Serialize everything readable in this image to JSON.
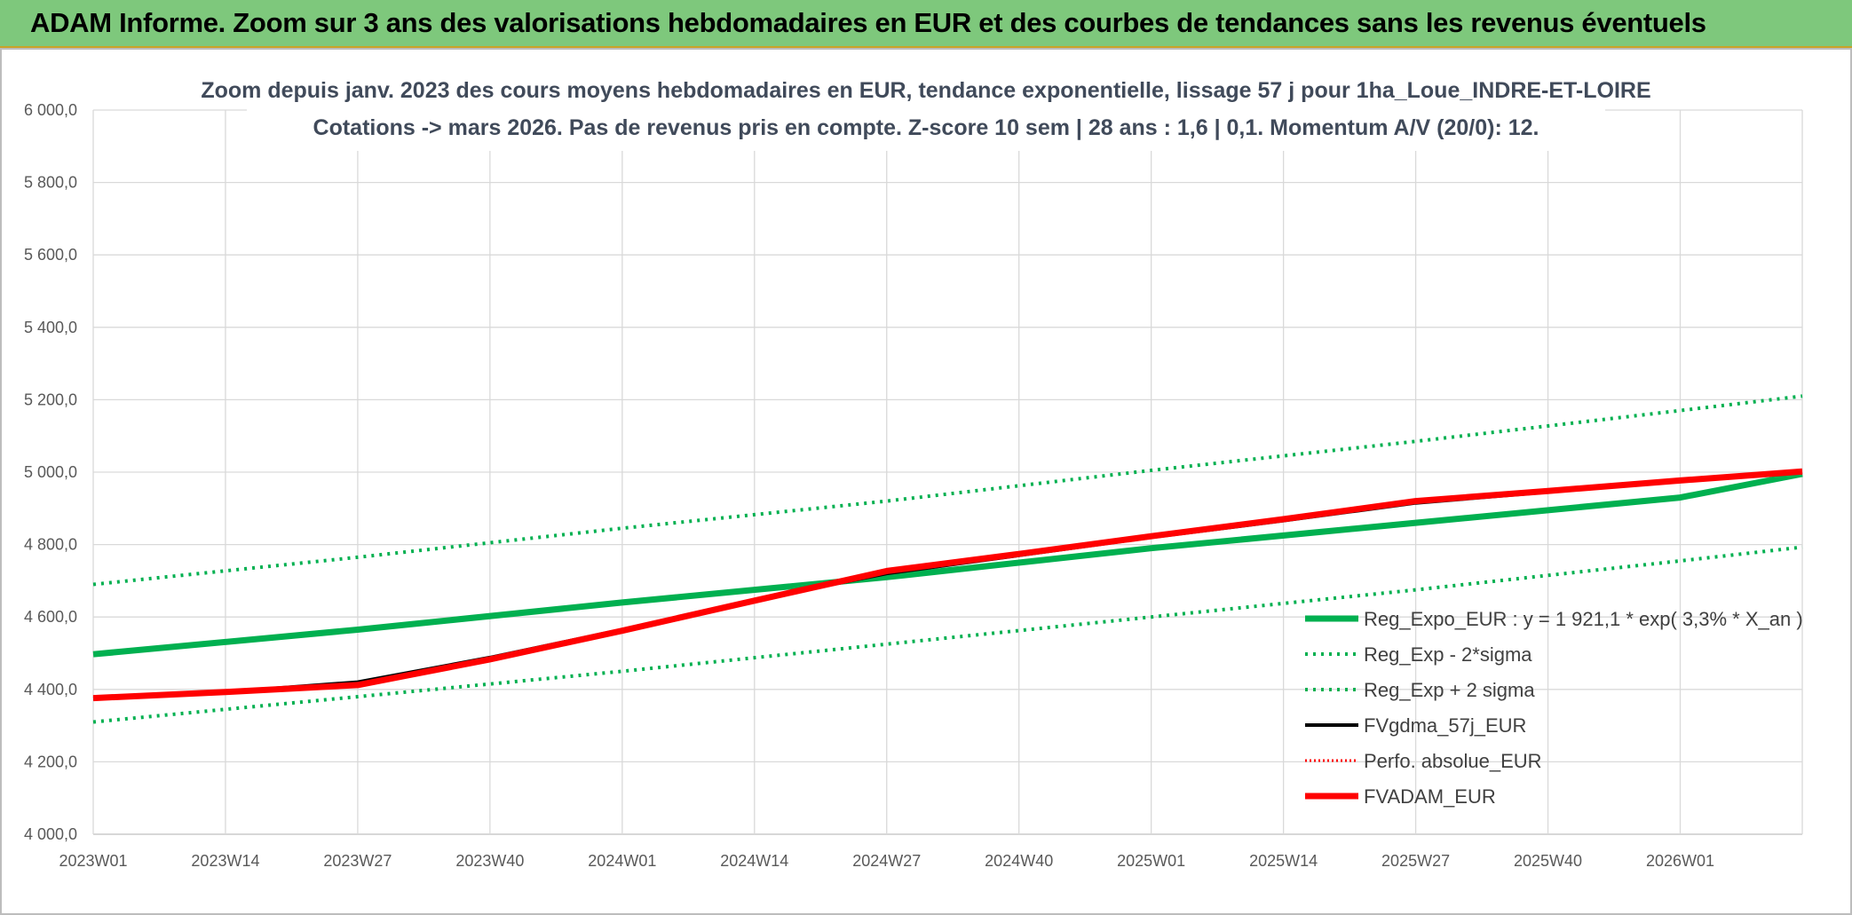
{
  "header": {
    "title": "ADAM Informe. Zoom sur 3 ans des valorisations hebdomadaires en EUR et des courbes de tendances sans les revenus éventuels"
  },
  "chart_data": {
    "type": "line",
    "title_line1": "Zoom depuis janv. 2023 des cours moyens hebdomadaires en EUR, tendance exponentielle, lissage 57 j pour 1ha_Loue_INDRE-ET-LOIRE",
    "title_line2": "Cotations -> mars 2026. Pas de revenus pris en compte. Z-score 10 sem | 28 ans : 1,6 | 0,1. Momentum A/V (20/0): 12.",
    "ylim": [
      4000,
      6000
    ],
    "yticks": [
      "4 000,0",
      "4 200,0",
      "4 400,0",
      "4 600,0",
      "4 800,0",
      "5 000,0",
      "5 200,0",
      "5 400,0",
      "5 600,0",
      "5 800,0",
      "6 000,0"
    ],
    "xticks": [
      "2023W01",
      "2023W14",
      "2023W27",
      "2023W40",
      "2024W01",
      "2024W14",
      "2024W27",
      "2024W40",
      "2025W01",
      "2025W14",
      "2025W27",
      "2025W40",
      "2026W01"
    ],
    "x_range_weeks": [
      0,
      168
    ],
    "grid": true,
    "legend_position": "right",
    "series": [
      {
        "name": "Reg_Expo_EUR : y = 1 921,1 * exp( 3,3% *  X_an )",
        "color": "#00b050",
        "style": "solid",
        "width": 7,
        "points": [
          [
            0,
            4497
          ],
          [
            26,
            4565
          ],
          [
            52,
            4640
          ],
          [
            78,
            4710
          ],
          [
            104,
            4790
          ],
          [
            130,
            4860
          ],
          [
            156,
            4930
          ],
          [
            168,
            4995
          ]
        ]
      },
      {
        "name": "Reg_Exp - 2*sigma",
        "color": "#00b050",
        "style": "dotted",
        "width": 4,
        "points": [
          [
            0,
            4310
          ],
          [
            26,
            4380
          ],
          [
            52,
            4450
          ],
          [
            78,
            4525
          ],
          [
            104,
            4600
          ],
          [
            130,
            4675
          ],
          [
            156,
            4755
          ],
          [
            168,
            4793
          ]
        ]
      },
      {
        "name": "Reg_Exp + 2 sigma",
        "color": "#00b050",
        "style": "dotted",
        "width": 4,
        "points": [
          [
            0,
            4690
          ],
          [
            26,
            4765
          ],
          [
            52,
            4845
          ],
          [
            78,
            4920
          ],
          [
            104,
            5005
          ],
          [
            130,
            5085
          ],
          [
            156,
            5170
          ],
          [
            168,
            5210
          ]
        ]
      },
      {
        "name": "FVgdma_57j_EUR",
        "color": "#000000",
        "style": "solid",
        "width": 4,
        "points": [
          [
            0,
            4375
          ],
          [
            13,
            4393
          ],
          [
            26,
            4420
          ],
          [
            39,
            4488
          ],
          [
            52,
            4565
          ],
          [
            65,
            4647
          ],
          [
            78,
            4720
          ],
          [
            91,
            4770
          ],
          [
            104,
            4820
          ],
          [
            117,
            4866
          ],
          [
            130,
            4915
          ],
          [
            143,
            4945
          ],
          [
            156,
            4975
          ],
          [
            168,
            5000
          ]
        ]
      },
      {
        "name": "Perfo. absolue_EUR",
        "color": "#ff0000",
        "style": "dotted",
        "width": 3,
        "points": [
          [
            0,
            4376
          ],
          [
            13,
            4393
          ],
          [
            26,
            4412
          ],
          [
            39,
            4483
          ],
          [
            52,
            4562
          ],
          [
            65,
            4645
          ],
          [
            78,
            4727
          ],
          [
            91,
            4774
          ],
          [
            104,
            4823
          ],
          [
            117,
            4870
          ],
          [
            130,
            4920
          ],
          [
            143,
            4948
          ],
          [
            156,
            4977
          ],
          [
            168,
            5002
          ]
        ]
      },
      {
        "name": "FVADAM_EUR",
        "color": "#ff0000",
        "style": "solid",
        "width": 7,
        "points": [
          [
            0,
            4376
          ],
          [
            13,
            4393
          ],
          [
            26,
            4412
          ],
          [
            39,
            4483
          ],
          [
            52,
            4562
          ],
          [
            65,
            4645
          ],
          [
            78,
            4727
          ],
          [
            91,
            4774
          ],
          [
            104,
            4823
          ],
          [
            117,
            4870
          ],
          [
            130,
            4920
          ],
          [
            143,
            4948
          ],
          [
            156,
            4977
          ],
          [
            168,
            5002
          ]
        ]
      }
    ]
  }
}
